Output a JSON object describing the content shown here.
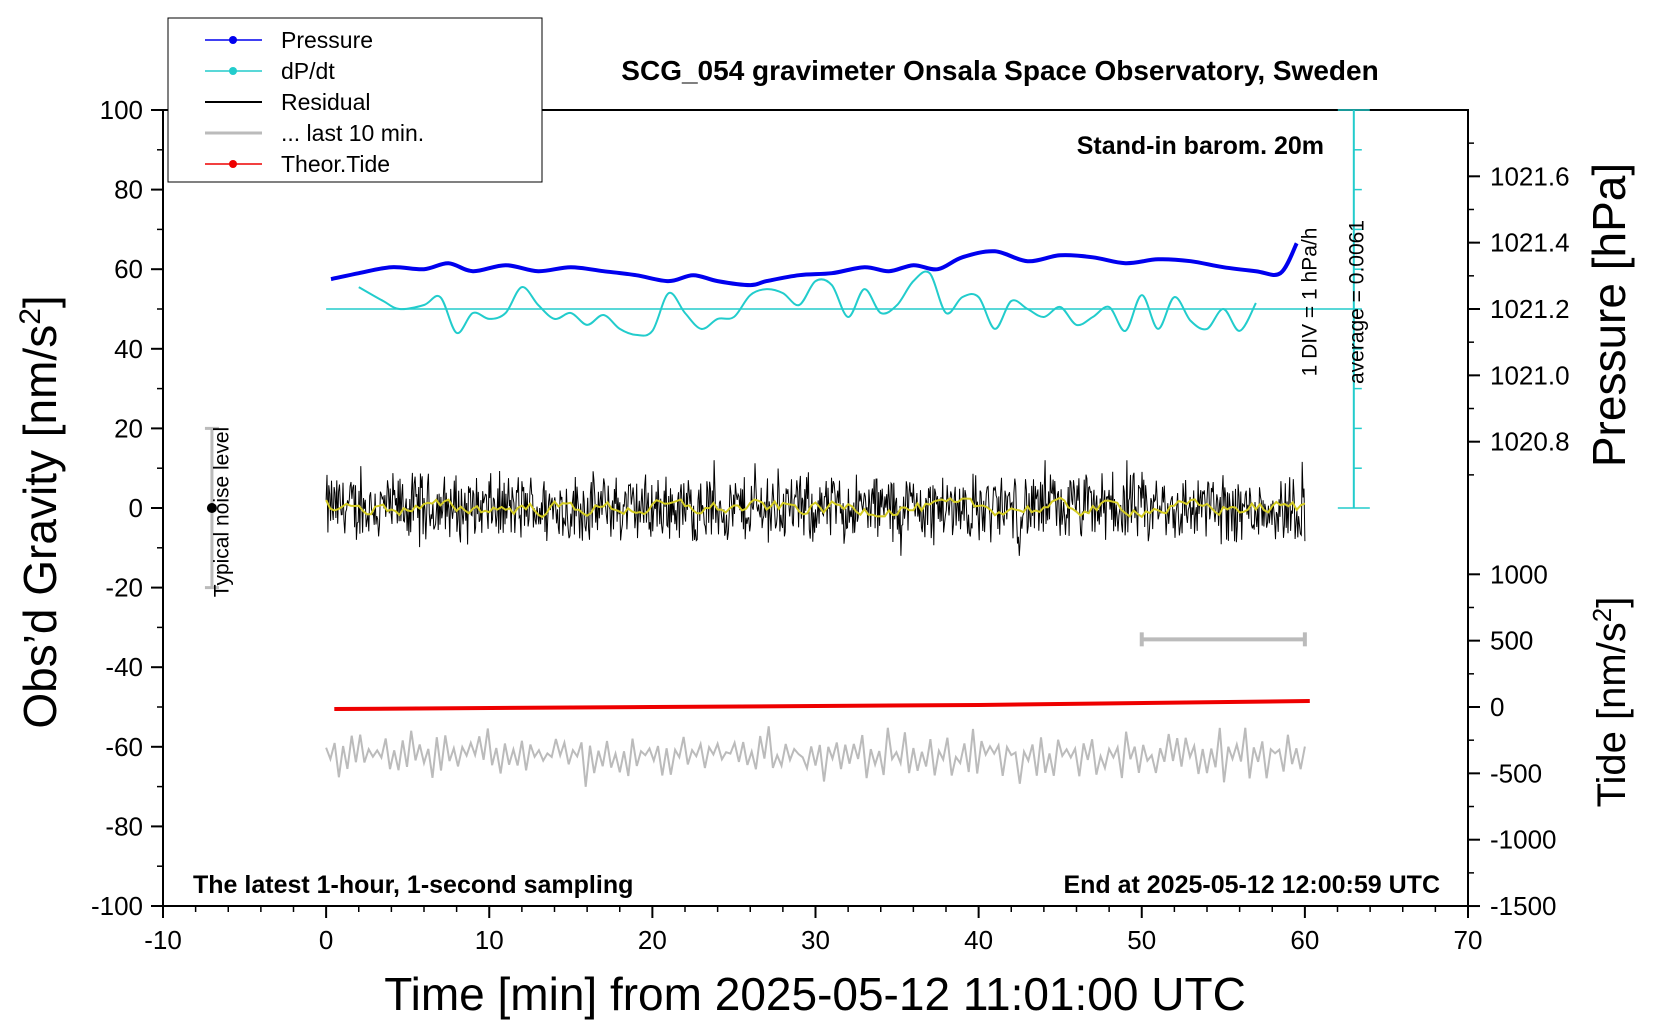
{
  "chart_data": {
    "type": "line",
    "title": "SCG_054 gravimeter Onsala Space Observatory, Sweden",
    "xlabel": "Time [min] from 2025-05-12 11:01:00 UTC",
    "ylabel_left_main": "Obs’d Gravity [nm/s",
    "ylabel_left_sup": "2",
    "ylabel_left_end": "]",
    "ylabel_right_top": "Pressure [hPa]",
    "ylabel_right_bottom_main": "Tide [nm/s",
    "ylabel_right_bottom_sup": "2",
    "ylabel_right_bottom_end": "]",
    "xlim": [
      -10,
      70
    ],
    "ylim_left": [
      -100,
      100
    ],
    "x_ticks": [
      "-10",
      "0",
      "10",
      "20",
      "30",
      "40",
      "50",
      "60",
      "70"
    ],
    "y_ticks_left": [
      "-100",
      "-80",
      "-60",
      "-40",
      "-20",
      "0",
      "20",
      "40",
      "60",
      "80",
      "100"
    ],
    "pressure_axis": {
      "ticks": [
        "1020.8",
        "1021.0",
        "1021.2",
        "1021.4",
        "1021.6"
      ],
      "values": [
        1020.8,
        1021.0,
        1021.2,
        1021.4,
        1021.6
      ],
      "left_value_at_1021_2": 50,
      "left_units_per_hpa": 25
    },
    "tide_axis": {
      "ticks": [
        "-1500",
        "-1000",
        "-500",
        "0",
        "500",
        "1000"
      ],
      "values": [
        -1500,
        -1000,
        -500,
        0,
        500,
        1000
      ],
      "left_value_at_0": -50,
      "left_units_per_500": 16.67
    },
    "legend": {
      "placement": "top-left",
      "entries": [
        {
          "name": "Pressure",
          "color": "#0000ee",
          "marker": true
        },
        {
          "name": "dP/dt",
          "color": "#22cccc",
          "marker": true
        },
        {
          "name": "Residual",
          "color": "#000000",
          "marker": false
        },
        {
          "name": "... last 10 min.",
          "color": "#bbbbbb",
          "marker": false
        },
        {
          "name": "Theor.Tide",
          "color": "#ee0000",
          "marker": true
        }
      ]
    },
    "annotations": {
      "barometer": "Stand-in barom. 20m",
      "div_scale": "1 DIV = 1 hPa/h",
      "average": "average = 0.0061",
      "noise": "Typical noise level",
      "footer_left": "The latest 1-hour, 1-second sampling",
      "footer_right": "End at 2025-05-12 12:00:59 UTC"
    },
    "noise_bar": {
      "x": -7,
      "y": 0,
      "low": -20,
      "high": 20
    },
    "dpdt_scale": {
      "x": 63,
      "bottom": 0,
      "top": 100,
      "divisions": 10,
      "baseline": 50
    },
    "ten_min_marker": {
      "x0": 50,
      "x1": 60,
      "y": -33
    },
    "series": [
      {
        "name": "Pressure",
        "axis": "left",
        "color": "#0000ee",
        "x": [
          0.3,
          2,
          4,
          6,
          7.5,
          9,
          11,
          13,
          15,
          17,
          19,
          21,
          22.5,
          24,
          26,
          27,
          29,
          31,
          33,
          34.5,
          36,
          37.5,
          39,
          41,
          43,
          45,
          47,
          49,
          51,
          53,
          55,
          57,
          58.5,
          59.5
        ],
        "y": [
          57.5,
          59,
          60.5,
          60,
          61.5,
          59.5,
          61,
          59.5,
          60.5,
          59.5,
          58.5,
          57,
          58.5,
          57,
          56,
          57,
          58.5,
          59,
          60.5,
          59.5,
          61,
          60,
          63,
          64.5,
          62,
          63.5,
          63,
          61.5,
          62.5,
          62,
          60.5,
          59.5,
          59,
          66.5
        ]
      },
      {
        "name": "dP/dt",
        "axis": "left",
        "color": "#22cccc",
        "x": [
          2,
          3.5,
          4.5,
          6,
          7,
          8,
          9,
          10,
          11,
          12,
          13,
          14,
          15,
          16,
          17,
          18,
          19,
          20,
          21,
          22,
          23,
          24,
          25,
          26,
          27,
          28,
          29,
          30,
          31,
          32,
          33,
          34,
          35,
          36,
          37,
          38,
          39,
          40,
          41,
          42,
          43,
          44,
          45,
          46,
          47,
          48,
          49,
          50,
          51,
          52,
          53,
          54,
          55,
          56,
          57
        ],
        "y": [
          55.5,
          52,
          50,
          51,
          53,
          44,
          49,
          47.5,
          49,
          55.5,
          51,
          47.5,
          49,
          46,
          48.5,
          45,
          43.5,
          44.5,
          54,
          49,
          45,
          47.5,
          48,
          53.5,
          55,
          54,
          51,
          57,
          56,
          48,
          55,
          49,
          51,
          57,
          59,
          49,
          53,
          53,
          45,
          52,
          50,
          48,
          50.5,
          46,
          48,
          50.5,
          44.5,
          53.5,
          45,
          53,
          47,
          45,
          50,
          44.5,
          51.5
        ]
      },
      {
        "name": "Theor.Tide",
        "axis": "left",
        "color": "#ee0000",
        "x": [
          0.5,
          20,
          40,
          60.3
        ],
        "y": [
          -50.5,
          -50,
          -49.5,
          -48.5
        ]
      },
      {
        "name": "Residual",
        "axis": "left",
        "color": "#000000",
        "x_range": [
          0,
          60
        ],
        "y_envelope": [
          -12,
          12
        ],
        "note": "1-second sampled noise centered near 0"
      },
      {
        "name": "... last 10 min.",
        "axis": "left",
        "color": "#bbbbbb",
        "x_range": [
          0,
          60
        ],
        "y_center": -62,
        "y_envelope": [
          -72,
          -52
        ]
      }
    ]
  }
}
